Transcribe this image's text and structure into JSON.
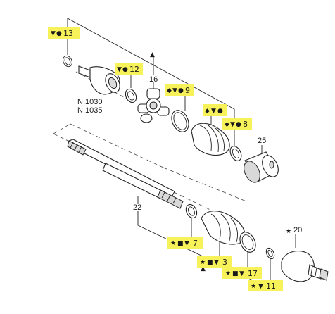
{
  "diagram": {
    "plain_labels": {
      "part_16": "16",
      "part_25": "25",
      "part_22": "22",
      "part_20": "20",
      "ref_n1030": "N.1030",
      "ref_n1035": "N.1035"
    },
    "highlighted_callouts": {
      "c13": "13",
      "c12": "12",
      "c9": "9",
      "c_boot": "",
      "c8": "8",
      "c7": "7",
      "c3": "3",
      "c17": "17",
      "c11": "11"
    },
    "symbols": {
      "triangle_down": "▼",
      "triangle_up": "▲",
      "circle": "●",
      "diamond": "◆",
      "star": "★",
      "square": "■"
    },
    "highlight_color": "#f7f25a",
    "line_color": "#222222"
  }
}
